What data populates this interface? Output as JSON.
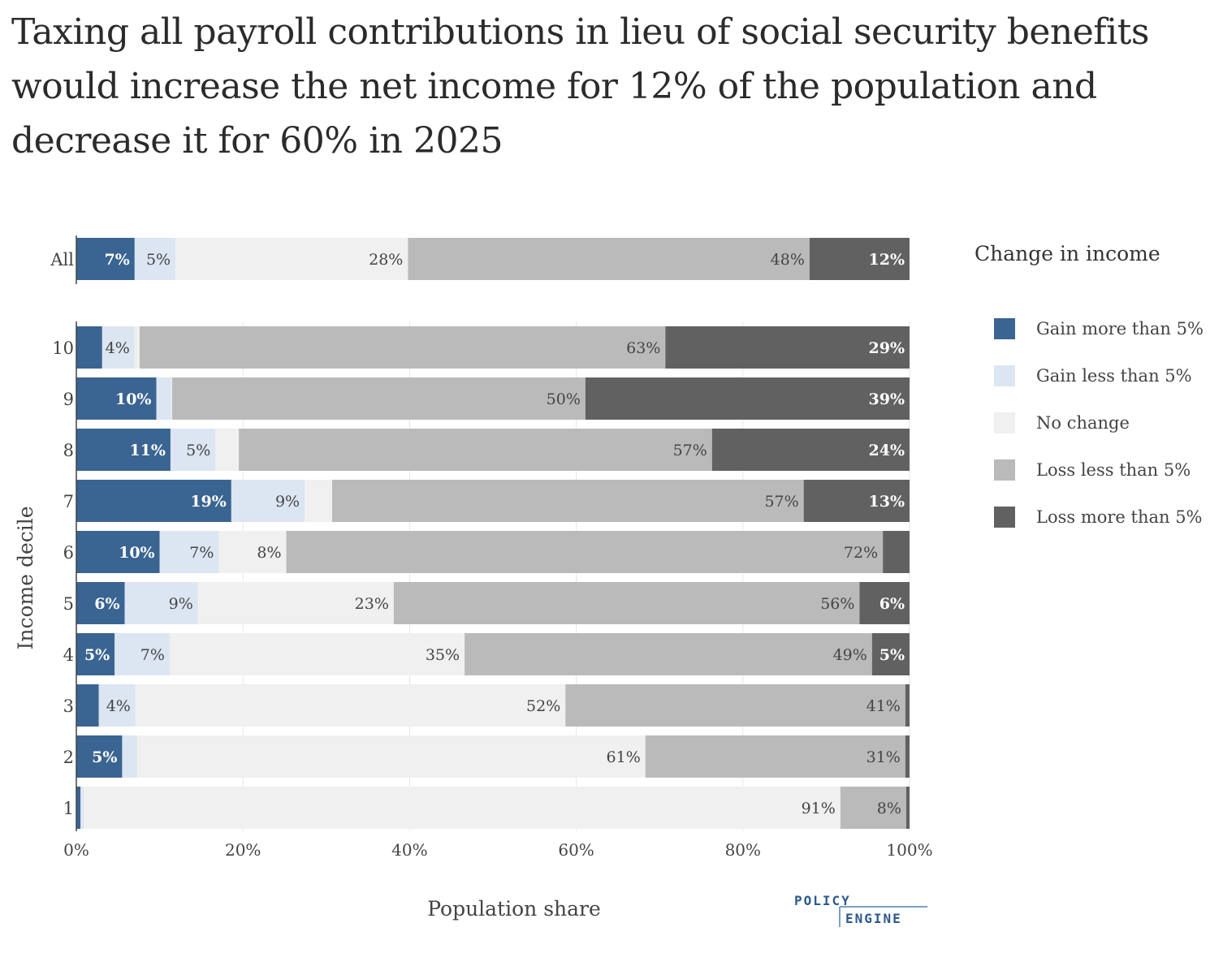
{
  "title": "Taxing all payroll contributions in lieu of social security benefits would increase the net income for 12% of the population and decrease it for 60% in 2025",
  "logo": {
    "word1": "POLICY",
    "word2": "ENGINE",
    "color": "#2c5a8c"
  },
  "chart_data": {
    "type": "bar",
    "orientation": "horizontal",
    "stacked": true,
    "title": "Taxing all payroll contributions in lieu of social security benefits would increase the net income for 12% of the population and decrease it for 60% in 2025",
    "xlabel": "Population share",
    "ylabel": "Income decile",
    "xlim": [
      0,
      100
    ],
    "x_ticks": [
      "0%",
      "20%",
      "40%",
      "60%",
      "80%",
      "100%"
    ],
    "grid": true,
    "legend_title": "Change in income",
    "legend_position": "right",
    "categories": [
      "All",
      "10",
      "9",
      "8",
      "7",
      "6",
      "5",
      "4",
      "3",
      "2",
      "1"
    ],
    "series": [
      {
        "name": "Gain more than 5%",
        "color": "#3a6491",
        "label_color": "#ffffff",
        "values": [
          7.0,
          3.1,
          9.6,
          11.3,
          18.6,
          10.0,
          5.8,
          4.6,
          2.7,
          5.5,
          0.5
        ],
        "labels": [
          "7%",
          "",
          "10%",
          "11%",
          "19%",
          "10%",
          "6%",
          "5%",
          "",
          "5%",
          ""
        ]
      },
      {
        "name": "Gain less than 5%",
        "color": "#dce6f2",
        "label_color": "#444444",
        "values": [
          4.9,
          3.9,
          1.8,
          5.4,
          8.8,
          7.1,
          8.8,
          6.6,
          4.4,
          1.8,
          0.4
        ],
        "labels": [
          "5%",
          "4%",
          "",
          "5%",
          "9%",
          "7%",
          "9%",
          "7%",
          "4%",
          "",
          ""
        ]
      },
      {
        "name": "No change",
        "color": "#f0f0f0",
        "label_color": "#444444",
        "values": [
          27.9,
          0.6,
          0.1,
          2.8,
          3.3,
          8.1,
          23.5,
          35.4,
          51.6,
          61.0,
          90.8
        ],
        "labels": [
          "28%",
          "",
          "",
          "",
          "",
          "8%",
          "23%",
          "35%",
          "52%",
          "61%",
          "91%"
        ]
      },
      {
        "name": "Loss less than 5%",
        "color": "#bababa",
        "label_color": "#444444",
        "values": [
          48.2,
          63.1,
          49.6,
          56.8,
          56.6,
          71.6,
          55.9,
          48.9,
          40.8,
          31.2,
          7.9
        ],
        "labels": [
          "48%",
          "63%",
          "50%",
          "57%",
          "57%",
          "72%",
          "56%",
          "49%",
          "41%",
          "31%",
          "8%"
        ]
      },
      {
        "name": "Loss more than 5%",
        "color": "#616161",
        "label_color": "#ffffff",
        "values": [
          12.0,
          29.3,
          38.9,
          23.7,
          12.7,
          3.2,
          6.0,
          4.5,
          0.5,
          0.5,
          0.4
        ],
        "labels": [
          "12%",
          "29%",
          "39%",
          "24%",
          "13%",
          "",
          "6%",
          "5%",
          "",
          "",
          ""
        ]
      }
    ]
  }
}
